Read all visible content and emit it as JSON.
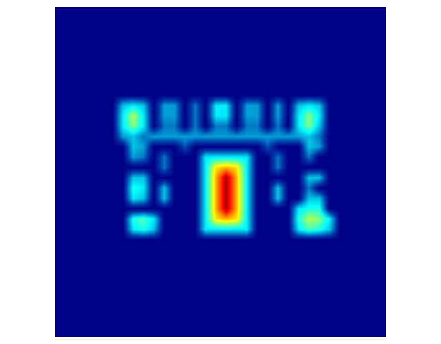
{
  "chart_data": {
    "type": "heatmap",
    "color": "Jet",
    "color_range": [
      0,
      1
    ],
    "xlim": [
      -0.5,
      31.5
    ],
    "ylim": [
      31.5,
      -0.5
    ],
    "tick_labels": false,
    "grid": false,
    "cells": [
      [
        0,
        0,
        0,
        0,
        0,
        0,
        0,
        0,
        0,
        0,
        0,
        0,
        0,
        0,
        0,
        0,
        0,
        0,
        0,
        0,
        0,
        0,
        0,
        0,
        0,
        0,
        0,
        0,
        0,
        0,
        0,
        0
      ],
      [
        0,
        0,
        0,
        0,
        0,
        0,
        0,
        0,
        0,
        0,
        0,
        0,
        0,
        0,
        0,
        0,
        0,
        0,
        0,
        0,
        0,
        0,
        0,
        0,
        0,
        0,
        0,
        0,
        0,
        0,
        0,
        0
      ],
      [
        0,
        0,
        0,
        0,
        0,
        0,
        0,
        0,
        0,
        0,
        0,
        0,
        0,
        0,
        0,
        0,
        0,
        0,
        0,
        0,
        0,
        0,
        0,
        0,
        0,
        0,
        0,
        0,
        0,
        0,
        0,
        0
      ],
      [
        0,
        0,
        0,
        0,
        0,
        0,
        0,
        0,
        0,
        0,
        0,
        0,
        0,
        0,
        0,
        0,
        0,
        0,
        0,
        0,
        0,
        0,
        0,
        0,
        0,
        0,
        0,
        0,
        0,
        0,
        0,
        0
      ],
      [
        0,
        0,
        0,
        0,
        0,
        0,
        0,
        0,
        0,
        0,
        0,
        0,
        0,
        0,
        0,
        0,
        0,
        0,
        0,
        0,
        0,
        0,
        0,
        0,
        0,
        0,
        0,
        0,
        0,
        0,
        0,
        0
      ],
      [
        0,
        0,
        0,
        0,
        0,
        0,
        0,
        0,
        0,
        0,
        0,
        0,
        0,
        0,
        0,
        0,
        0,
        0,
        0,
        0,
        0,
        0,
        0,
        0,
        0,
        0,
        0,
        0,
        0,
        0,
        0,
        0
      ],
      [
        0,
        0,
        0,
        0,
        0,
        0,
        0,
        0,
        0,
        0,
        0,
        0,
        0,
        0,
        0,
        0,
        0,
        0,
        0,
        0,
        0,
        0,
        0,
        0,
        0,
        0,
        0,
        0,
        0,
        0,
        0,
        0
      ],
      [
        0,
        0,
        0,
        0,
        0,
        0,
        0,
        0,
        0,
        0,
        0,
        0,
        0,
        0,
        0,
        0,
        0,
        0,
        0,
        0,
        0,
        0,
        0,
        0,
        0,
        0,
        0,
        0,
        0,
        0,
        0,
        0
      ],
      [
        0,
        0,
        0,
        0,
        0,
        0,
        0,
        0,
        0,
        0,
        0,
        0,
        0,
        0,
        0,
        0,
        0,
        0,
        0,
        0,
        0,
        0,
        0,
        0,
        0,
        0,
        0,
        0,
        0,
        0,
        0,
        0
      ],
      [
        0,
        0,
        0,
        0,
        0,
        0,
        0.3,
        0.35,
        0.3,
        0,
        0.25,
        0.25,
        0,
        0.2,
        0,
        0.35,
        0.35,
        0,
        0.25,
        0.25,
        0,
        0.25,
        0,
        0.3,
        0.35,
        0.3,
        0,
        0,
        0,
        0,
        0,
        0
      ],
      [
        0,
        0,
        0,
        0,
        0,
        0,
        0.35,
        0.55,
        0.35,
        0,
        0.25,
        0.25,
        0,
        0.2,
        0,
        0.35,
        0.35,
        0,
        0.25,
        0.25,
        0,
        0.25,
        0,
        0.35,
        0.5,
        0.35,
        0,
        0,
        0,
        0,
        0,
        0
      ],
      [
        0,
        0,
        0,
        0,
        0,
        0,
        0.35,
        0.5,
        0.35,
        0,
        0.2,
        0.2,
        0,
        0.2,
        0,
        0.2,
        0.2,
        0,
        0.2,
        0.2,
        0,
        0.2,
        0,
        0.35,
        0.5,
        0.3,
        0,
        0,
        0,
        0,
        0,
        0
      ],
      [
        0,
        0,
        0,
        0,
        0,
        0,
        0.25,
        0.3,
        0.2,
        0.25,
        0.25,
        0.25,
        0.25,
        0.25,
        0.25,
        0.25,
        0.25,
        0.25,
        0.25,
        0.25,
        0.25,
        0.25,
        0.25,
        0.25,
        0.3,
        0.2,
        0,
        0,
        0,
        0,
        0,
        0
      ],
      [
        0,
        0,
        0,
        0,
        0,
        0,
        0,
        0.3,
        0.25,
        0,
        0,
        0,
        0.15,
        0,
        0,
        0,
        0,
        0,
        0,
        0,
        0.15,
        0,
        0,
        0,
        0.3,
        0.25,
        0,
        0,
        0,
        0,
        0,
        0
      ],
      [
        0,
        0,
        0,
        0,
        0,
        0,
        0,
        0.25,
        0.2,
        0,
        0.2,
        0,
        0,
        0,
        0.35,
        0.35,
        0.35,
        0.35,
        0.35,
        0,
        0,
        0.2,
        0,
        0,
        0.2,
        0,
        0,
        0,
        0,
        0,
        0,
        0
      ],
      [
        0,
        0,
        0,
        0,
        0,
        0,
        0,
        0,
        0,
        0,
        0.2,
        0,
        0,
        0,
        0.35,
        0.65,
        0.7,
        0.65,
        0.35,
        0,
        0,
        0.2,
        0,
        0,
        0,
        0,
        0,
        0,
        0,
        0,
        0,
        0
      ],
      [
        0,
        0,
        0,
        0,
        0,
        0,
        0,
        0.3,
        0.3,
        0,
        0,
        0,
        0,
        0,
        0.35,
        0.7,
        0.95,
        0.7,
        0.35,
        0,
        0,
        0,
        0,
        0,
        0.3,
        0.3,
        0,
        0,
        0,
        0,
        0,
        0
      ],
      [
        0,
        0,
        0,
        0,
        0,
        0,
        0,
        0.4,
        0.35,
        0,
        0.3,
        0,
        0,
        0,
        0.35,
        0.7,
        0.95,
        0.7,
        0.35,
        0,
        0,
        0.3,
        0,
        0,
        0.2,
        0,
        0,
        0,
        0,
        0,
        0,
        0
      ],
      [
        0,
        0,
        0,
        0,
        0,
        0,
        0,
        0.35,
        0.3,
        0,
        0.3,
        0,
        0,
        0,
        0.35,
        0.7,
        0.95,
        0.7,
        0.35,
        0,
        0,
        0.3,
        0,
        0,
        0.3,
        0.3,
        0,
        0,
        0,
        0,
        0,
        0
      ],
      [
        0,
        0,
        0,
        0,
        0,
        0,
        0,
        0,
        0,
        0,
        0,
        0,
        0,
        0,
        0.35,
        0.7,
        0.95,
        0.7,
        0.35,
        0,
        0,
        0,
        0,
        0.35,
        0.4,
        0.4,
        0,
        0,
        0,
        0,
        0,
        0
      ],
      [
        0,
        0,
        0,
        0,
        0,
        0,
        0,
        0.4,
        0.45,
        0.35,
        0,
        0,
        0,
        0,
        0.35,
        0.65,
        0.7,
        0.65,
        0.35,
        0,
        0,
        0,
        0,
        0.4,
        0.55,
        0.5,
        0.35,
        0,
        0,
        0,
        0,
        0
      ],
      [
        0,
        0,
        0,
        0,
        0,
        0,
        0,
        0.35,
        0.4,
        0.3,
        0,
        0,
        0,
        0,
        0.35,
        0.35,
        0.35,
        0.35,
        0.35,
        0,
        0,
        0,
        0,
        0.35,
        0.45,
        0.4,
        0.3,
        0,
        0,
        0,
        0,
        0
      ],
      [
        0,
        0,
        0,
        0,
        0,
        0,
        0,
        0,
        0,
        0,
        0,
        0,
        0,
        0,
        0,
        0,
        0,
        0,
        0,
        0,
        0,
        0,
        0,
        0,
        0,
        0,
        0,
        0,
        0,
        0,
        0,
        0
      ],
      [
        0,
        0,
        0,
        0,
        0,
        0,
        0,
        0,
        0,
        0,
        0,
        0,
        0,
        0,
        0,
        0,
        0,
        0,
        0,
        0,
        0,
        0,
        0,
        0,
        0,
        0,
        0,
        0,
        0,
        0,
        0,
        0
      ],
      [
        0,
        0,
        0,
        0,
        0,
        0,
        0,
        0,
        0,
        0,
        0,
        0,
        0,
        0,
        0,
        0,
        0,
        0,
        0,
        0,
        0,
        0,
        0,
        0,
        0,
        0,
        0,
        0,
        0,
        0,
        0,
        0
      ],
      [
        0,
        0,
        0,
        0,
        0,
        0,
        0,
        0,
        0,
        0,
        0,
        0,
        0,
        0,
        0,
        0,
        0,
        0,
        0,
        0,
        0,
        0,
        0,
        0,
        0,
        0,
        0,
        0,
        0,
        0,
        0,
        0
      ],
      [
        0,
        0,
        0,
        0,
        0,
        0,
        0,
        0,
        0,
        0,
        0,
        0,
        0,
        0,
        0,
        0,
        0,
        0,
        0,
        0,
        0,
        0,
        0,
        0,
        0,
        0,
        0,
        0,
        0,
        0,
        0,
        0
      ],
      [
        0,
        0,
        0,
        0,
        0,
        0,
        0,
        0,
        0,
        0,
        0,
        0,
        0,
        0,
        0,
        0,
        0,
        0,
        0,
        0,
        0,
        0,
        0,
        0,
        0,
        0,
        0,
        0,
        0,
        0,
        0,
        0
      ],
      [
        0,
        0,
        0,
        0,
        0,
        0,
        0,
        0,
        0,
        0,
        0,
        0,
        0,
        0,
        0,
        0,
        0,
        0,
        0,
        0,
        0,
        0,
        0,
        0,
        0,
        0,
        0,
        0,
        0,
        0,
        0,
        0
      ],
      [
        0,
        0,
        0,
        0,
        0,
        0,
        0,
        0,
        0,
        0,
        0,
        0,
        0,
        0,
        0,
        0,
        0,
        0,
        0,
        0,
        0,
        0,
        0,
        0,
        0,
        0,
        0,
        0,
        0,
        0,
        0,
        0
      ],
      [
        0,
        0,
        0,
        0,
        0,
        0,
        0,
        0,
        0,
        0,
        0,
        0,
        0,
        0,
        0,
        0,
        0,
        0,
        0,
        0,
        0,
        0,
        0,
        0,
        0,
        0,
        0,
        0,
        0,
        0,
        0,
        0
      ],
      [
        0,
        0,
        0,
        0,
        0,
        0,
        0,
        0,
        0,
        0,
        0,
        0,
        0,
        0,
        0,
        0,
        0,
        0,
        0,
        0,
        0,
        0,
        0,
        0,
        0,
        0,
        0,
        0,
        0,
        0,
        0,
        0
      ]
    ]
  }
}
